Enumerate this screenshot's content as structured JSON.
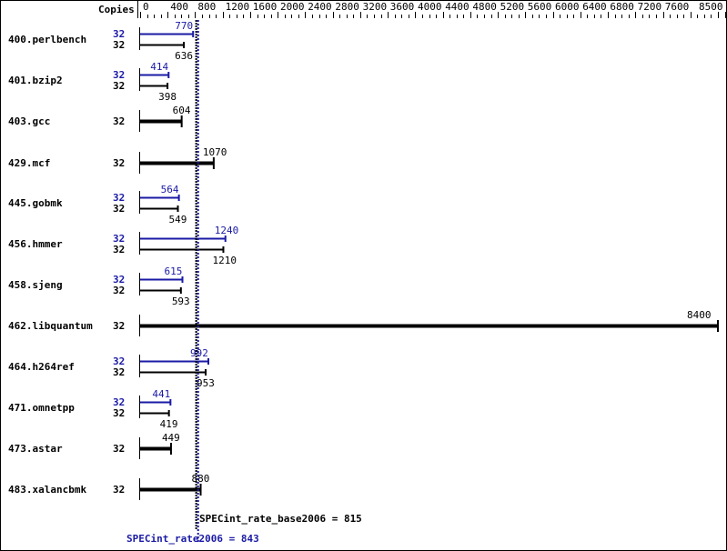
{
  "chart_data": {
    "type": "bar",
    "orientation": "horizontal",
    "copies_header": "Copies",
    "xlim": [
      0,
      8500
    ],
    "x_ticks": [
      "0",
      "400",
      "800",
      "1200",
      "1600",
      "2000",
      "2400",
      "2800",
      "3200",
      "3600",
      "4000",
      "4400",
      "4800",
      "5200",
      "5600",
      "6000",
      "6400",
      "6800",
      "7200",
      "7600",
      "8500"
    ],
    "colors": {
      "base": "#000000",
      "peak": "#1a1aa6"
    },
    "benchmarks": [
      {
        "name": "400.perlbench",
        "peak_copies": "32",
        "peak": 770,
        "base_copies": "32",
        "base": 636
      },
      {
        "name": "401.bzip2",
        "peak_copies": "32",
        "peak": 414,
        "base_copies": "32",
        "base": 398
      },
      {
        "name": "403.gcc",
        "base_copies": "32",
        "base": 604
      },
      {
        "name": "429.mcf",
        "base_copies": "32",
        "base": 1070
      },
      {
        "name": "445.gobmk",
        "peak_copies": "32",
        "peak": 564,
        "base_copies": "32",
        "base": 549
      },
      {
        "name": "456.hmmer",
        "peak_copies": "32",
        "peak": 1240,
        "base_copies": "32",
        "base": 1210
      },
      {
        "name": "458.sjeng",
        "peak_copies": "32",
        "peak": 615,
        "base_copies": "32",
        "base": 593
      },
      {
        "name": "462.libquantum",
        "base_copies": "32",
        "base": 8400
      },
      {
        "name": "464.h264ref",
        "peak_copies": "32",
        "peak": 992,
        "base_copies": "32",
        "base": 953
      },
      {
        "name": "471.omnetpp",
        "peak_copies": "32",
        "peak": 441,
        "base_copies": "32",
        "base": 419
      },
      {
        "name": "473.astar",
        "base_copies": "32",
        "base": 449
      },
      {
        "name": "483.xalancbmk",
        "base_copies": "32",
        "base": 880
      }
    ],
    "base_summary": {
      "label": "SPECint_rate_base2006 = 815",
      "value": 815
    },
    "peak_summary": {
      "label": "SPECint_rate2006 = 843",
      "value": 843
    }
  }
}
